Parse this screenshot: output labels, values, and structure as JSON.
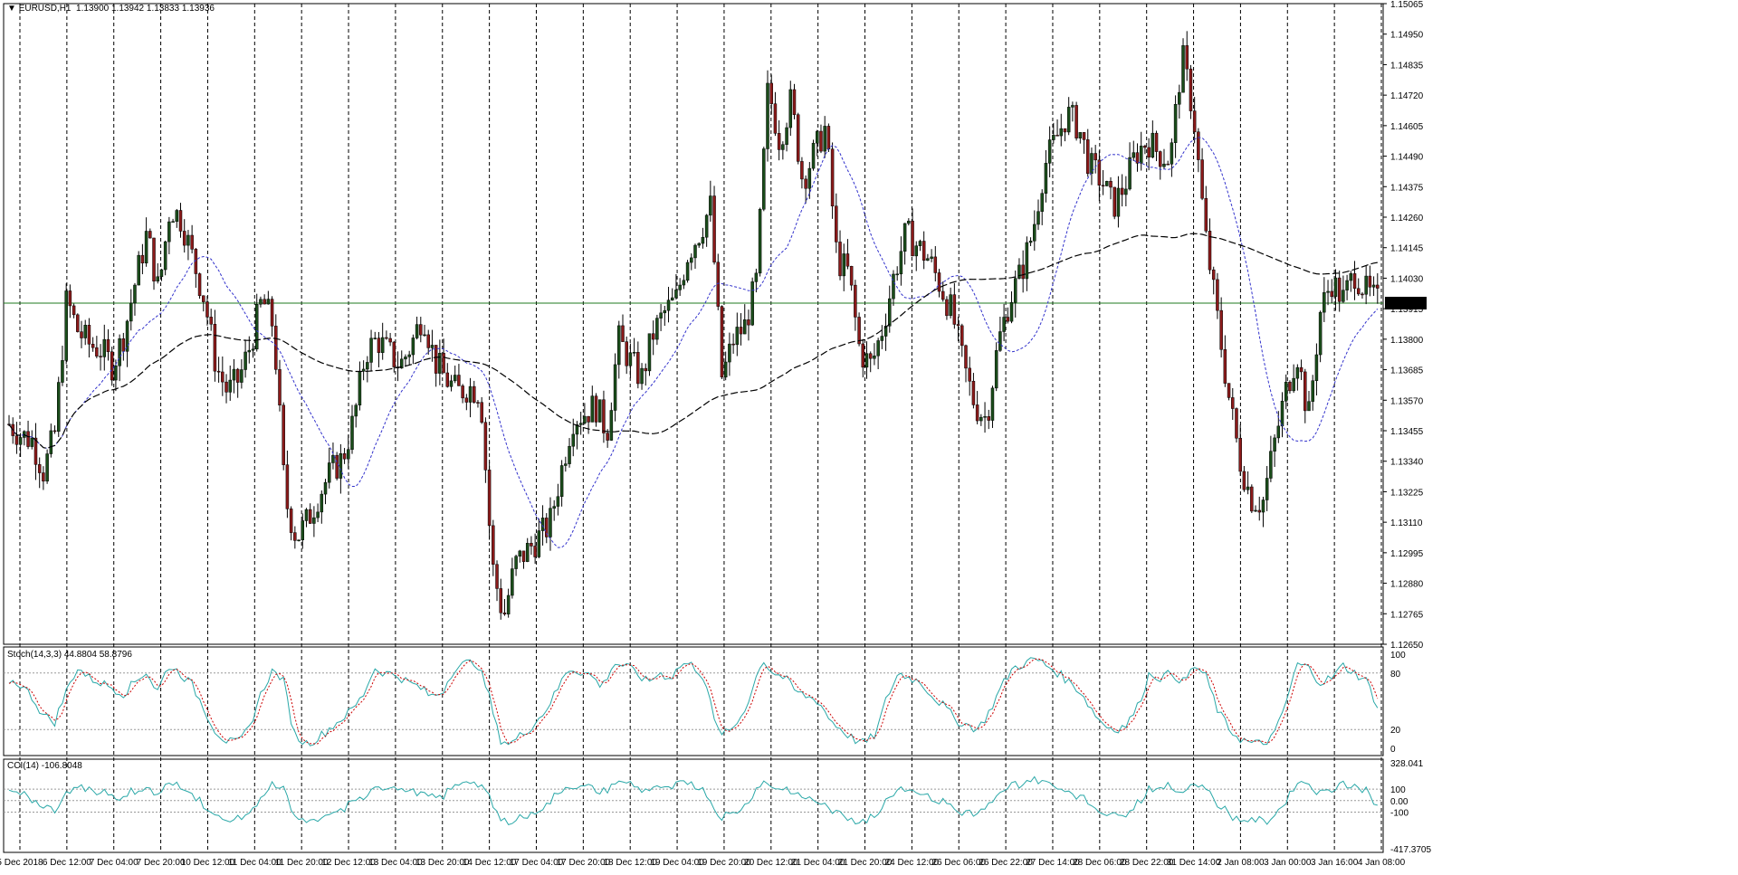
{
  "header": {
    "symbol": "EURUSD,H1",
    "ohlc": "1.13900 1.13942 1.13833 1.13936"
  },
  "indicators": {
    "stoch_label": "Stoch(14,3,3) 44.8804 58.8796",
    "cci_label": "CCI(14) -106.8048",
    "stoch_levels": [
      "100",
      "80",
      "20",
      "0"
    ],
    "cci_levels": [
      "328.041",
      "100",
      "0.00",
      "-100",
      "-417.3705"
    ]
  },
  "colors": {
    "bull": "#1a4d1a",
    "bear": "#8b1a1a",
    "ma_fast": "#3333cc",
    "ma_slow": "#000000",
    "signal": "#2aa8a8",
    "signal_dash": "#cc0000",
    "bid_line": "#1f7a1f"
  },
  "chart_data": {
    "type": "candlestick",
    "symbol": "EURUSD",
    "timeframe": "H1",
    "price_ticks": [
      "1.15065",
      "1.14950",
      "1.14835",
      "1.14720",
      "1.14605",
      "1.14490",
      "1.14375",
      "1.14260",
      "1.14145",
      "1.14030",
      "1.13915",
      "1.13800",
      "1.13685",
      "1.13570",
      "1.13455",
      "1.13340",
      "1.13225",
      "1.13110",
      "1.12995",
      "1.12880",
      "1.12765",
      "1.12650"
    ],
    "ylim": [
      1.1265,
      1.15065
    ],
    "current_price": "1.13936",
    "time_labels": [
      "5 Dec 2018",
      "6 Dec 12:00",
      "7 Dec 04:00",
      "7 Dec 20:00",
      "10 Dec 12:00",
      "11 Dec 04:00",
      "11 Dec 20:00",
      "12 Dec 12:00",
      "13 Dec 04:00",
      "13 Dec 20:00",
      "14 Dec 12:00",
      "17 Dec 04:00",
      "17 Dec 20:00",
      "18 Dec 12:00",
      "19 Dec 04:00",
      "19 Dec 20:00",
      "20 Dec 12:00",
      "21 Dec 04:00",
      "21 Dec 20:00",
      "24 Dec 12:00",
      "26 Dec 06:00",
      "26 Dec 22:00",
      "27 Dec 14:00",
      "28 Dec 06:00",
      "28 Dec 22:00",
      "31 Dec 14:00",
      "2 Jan 08:00",
      "3 Jan 00:00",
      "3 Jan 16:00",
      "4 Jan 08:00"
    ],
    "price_path": [
      1.1348,
      1.1344,
      1.1342,
      1.133,
      1.1345,
      1.1395,
      1.1383,
      1.1378,
      1.1376,
      1.137,
      1.1382,
      1.1402,
      1.142,
      1.1398,
      1.143,
      1.1425,
      1.141,
      1.1395,
      1.137,
      1.136,
      1.1365,
      1.1378,
      1.1395,
      1.1385,
      1.132,
      1.1305,
      1.1312,
      1.1322,
      1.133,
      1.1335,
      1.135,
      1.1375,
      1.138,
      1.1375,
      1.137,
      1.1378,
      1.139,
      1.1372,
      1.1365,
      1.136,
      1.1362,
      1.136,
      1.1295,
      1.1275,
      1.1295,
      1.13,
      1.1305,
      1.131,
      1.133,
      1.135,
      1.1352,
      1.1355,
      1.1345,
      1.138,
      1.1372,
      1.1365,
      1.1382,
      1.139,
      1.1395,
      1.1412,
      1.142,
      1.143,
      1.1365,
      1.138,
      1.1385,
      1.1402,
      1.1475,
      1.1455,
      1.147,
      1.144,
      1.145,
      1.146,
      1.141,
      1.1405,
      1.1375,
      1.137,
      1.1385,
      1.1405,
      1.142,
      1.1415,
      1.141,
      1.14,
      1.139,
      1.137,
      1.1355,
      1.135,
      1.1378,
      1.1395,
      1.1405,
      1.142,
      1.1445,
      1.1455,
      1.1465,
      1.146,
      1.1445,
      1.144,
      1.143,
      1.1438,
      1.145,
      1.1455,
      1.145,
      1.1448,
      1.1487,
      1.1465,
      1.142,
      1.139,
      1.136,
      1.1335,
      1.132,
      1.1318,
      1.134,
      1.136,
      1.1375,
      1.135,
      1.139,
      1.1402,
      1.1395,
      1.1405,
      1.1398,
      1.1394
    ],
    "stoch_path": [
      72,
      68,
      55,
      35,
      28,
      60,
      86,
      75,
      70,
      65,
      58,
      70,
      82,
      60,
      88,
      80,
      68,
      45,
      20,
      8,
      5,
      20,
      55,
      82,
      75,
      15,
      5,
      10,
      20,
      30,
      40,
      55,
      85,
      80,
      78,
      70,
      65,
      55,
      60,
      85,
      90,
      92,
      60,
      10,
      5,
      15,
      25,
      40,
      60,
      85,
      82,
      78,
      65,
      90,
      88,
      80,
      70,
      80,
      75,
      90,
      88,
      75,
      20,
      15,
      30,
      55,
      95,
      80,
      75,
      60,
      55,
      50,
      30,
      20,
      10,
      5,
      15,
      55,
      80,
      75,
      70,
      55,
      45,
      30,
      25,
      20,
      40,
      65,
      85,
      90,
      95,
      88,
      80,
      70,
      60,
      40,
      25,
      20,
      25,
      45,
      80,
      75,
      80,
      70,
      88,
      75,
      40,
      20,
      10,
      5,
      5,
      15,
      50,
      90,
      85,
      70,
      75,
      88,
      80,
      72,
      45
    ]
  }
}
